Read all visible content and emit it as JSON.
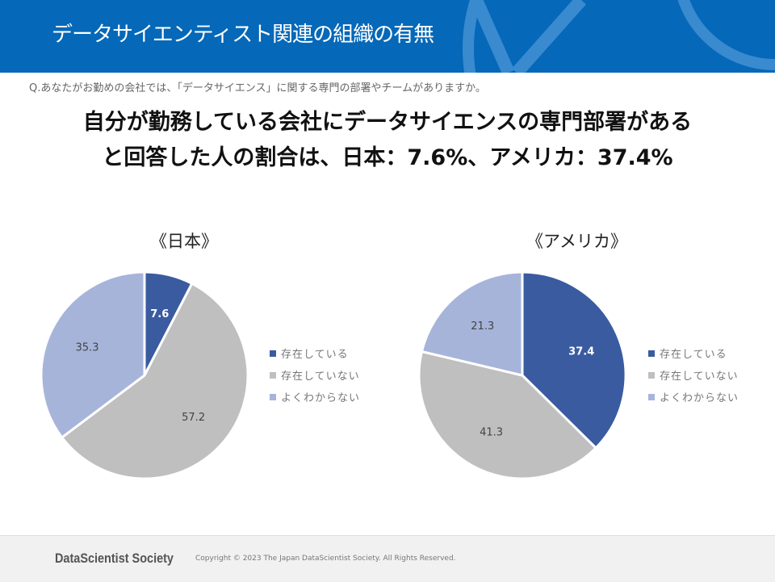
{
  "header": {
    "title": "データサイエンティスト関連の組織の有無"
  },
  "question": "Q.あなたがお勤めの会社では、「データサイエンス」に関する専門の部署やチームがありますか。",
  "headline": [
    "自分が勤務している会社にデータサイエンスの専門部署がある",
    "と回答した人の割合は、日本：7.6%、アメリカ：37.4%"
  ],
  "colors": [
    "#3a5ba0",
    "#bfbfbf",
    "#a7b4da"
  ],
  "chart_data": [
    {
      "type": "pie",
      "title": "《日本》",
      "labels": [
        "存在している",
        "存在していない",
        "よくわからない"
      ],
      "values": [
        7.6,
        57.2,
        35.3
      ],
      "legend": "right"
    },
    {
      "type": "pie",
      "title": "《アメリカ》",
      "labels": [
        "存在している",
        "存在していない",
        "よくわからない"
      ],
      "values": [
        37.4,
        41.3,
        21.3
      ],
      "legend": "right"
    }
  ],
  "footer": {
    "logo": "DataScientist Society",
    "copyright": "Copyright © 2023 The Japan DataScientist Society. All Rights Reserved."
  }
}
